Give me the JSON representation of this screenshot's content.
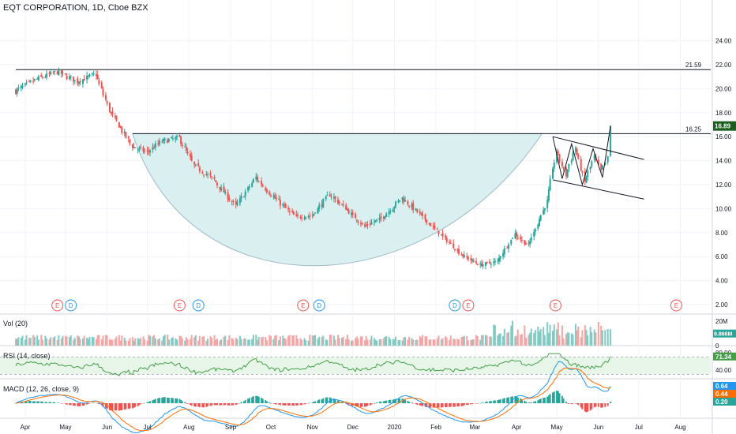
{
  "header": {
    "title": "EQT CORPORATION, 1D, Cboe BZX"
  },
  "colors": {
    "up": "#26a69a",
    "down": "#ef5350",
    "cup_fill": "#d9eff0",
    "cup_edge": "#9fb8c8",
    "rsi_line": "#43a047",
    "rsi_band": "#e8f5e9",
    "macd": "#2196f3",
    "signal": "#ff6d00",
    "last_price": "#1b5e20",
    "earnings": "#ef5350",
    "dividend": "#2196f3",
    "grid": "#f0f3fa"
  },
  "chart_data": [
    {
      "type": "candlestick",
      "pane": "price",
      "title": "EQT CORPORATION, 1D, Cboe BZX",
      "y_ticks": [
        "24.00",
        "22.00",
        "20.00",
        "18.00",
        "16.00",
        "14.00",
        "12.00",
        "10.00",
        "8.00",
        "6.00",
        "4.00",
        "2.00"
      ],
      "x_ticks": [
        "Apr",
        "May",
        "Jun",
        "Jul",
        "Aug",
        "Sep",
        "Oct",
        "Nov",
        "Dec",
        "2020",
        "Feb",
        "Mar",
        "Apr",
        "May",
        "Jun",
        "Jul",
        "Aug"
      ],
      "ylim": [
        2,
        24
      ],
      "close_path": [
        [
          "2019-03-25",
          19.8
        ],
        [
          "2019-04-10",
          20.8
        ],
        [
          "2019-04-25",
          21.4
        ],
        [
          "2019-05-10",
          20.6
        ],
        [
          "2019-05-24",
          21.2
        ],
        [
          "2019-06-03",
          18.2
        ],
        [
          "2019-06-20",
          15.2
        ],
        [
          "2019-07-01",
          14.7
        ],
        [
          "2019-07-12",
          15.6
        ],
        [
          "2019-07-25",
          15.9
        ],
        [
          "2019-08-05",
          13.6
        ],
        [
          "2019-08-20",
          12.4
        ],
        [
          "2019-09-05",
          10.2
        ],
        [
          "2019-09-20",
          12.6
        ],
        [
          "2019-10-03",
          11.0
        ],
        [
          "2019-10-20",
          9.3
        ],
        [
          "2019-11-01",
          9.4
        ],
        [
          "2019-11-14",
          11.2
        ],
        [
          "2019-11-26",
          10.0
        ],
        [
          "2019-12-10",
          8.5
        ],
        [
          "2019-12-24",
          9.3
        ],
        [
          "2020-01-07",
          10.9
        ],
        [
          "2020-01-20",
          9.6
        ],
        [
          "2020-02-05",
          7.8
        ],
        [
          "2020-02-20",
          6.2
        ],
        [
          "2020-03-05",
          5.3
        ],
        [
          "2020-03-18",
          5.6
        ],
        [
          "2020-03-31",
          7.9
        ],
        [
          "2020-04-10",
          6.9
        ],
        [
          "2020-04-24",
          10.6
        ],
        [
          "2020-05-01",
          14.8
        ],
        [
          "2020-05-08",
          12.8
        ],
        [
          "2020-05-15",
          15.1
        ],
        [
          "2020-05-22",
          12.2
        ],
        [
          "2020-05-29",
          14.3
        ],
        [
          "2020-06-03",
          13.1
        ],
        [
          "2020-06-08",
          14.2
        ],
        [
          "2020-06-10",
          16.89
        ]
      ],
      "last_price": "16.89",
      "levels": [
        {
          "value": 21.59,
          "label": "21.59"
        },
        {
          "value": 16.25,
          "label": "16.25"
        }
      ],
      "pattern": "cup and handle",
      "events": [
        {
          "date": "2019-04-25",
          "kind": "E"
        },
        {
          "date": "2019-05-05",
          "kind": "D"
        },
        {
          "date": "2019-07-25",
          "kind": "E"
        },
        {
          "date": "2019-08-08",
          "kind": "D"
        },
        {
          "date": "2019-10-25",
          "kind": "E"
        },
        {
          "date": "2019-11-06",
          "kind": "D"
        },
        {
          "date": "2020-02-15",
          "kind": "D"
        },
        {
          "date": "2020-02-25",
          "kind": "E"
        },
        {
          "date": "2020-04-30",
          "kind": "E"
        },
        {
          "date": "2020-07-29",
          "kind": "E"
        }
      ]
    },
    {
      "type": "bar",
      "pane": "volume",
      "title": "Vol (20)",
      "y_ticks": [
        "20M",
        "10M",
        "0"
      ],
      "last_value": "9.866M",
      "unit": "shares"
    },
    {
      "type": "line",
      "pane": "rsi",
      "title": "RSI (14, close)",
      "y_ticks": [
        "80.00",
        "40.00"
      ],
      "band": [
        30,
        70
      ],
      "last_value": "71.34"
    },
    {
      "type": "line",
      "pane": "macd",
      "title": "MACD (12, 26, close, 9)",
      "last_values": {
        "macd": "0.64",
        "signal": "0.44",
        "hist": "0.20"
      }
    }
  ]
}
